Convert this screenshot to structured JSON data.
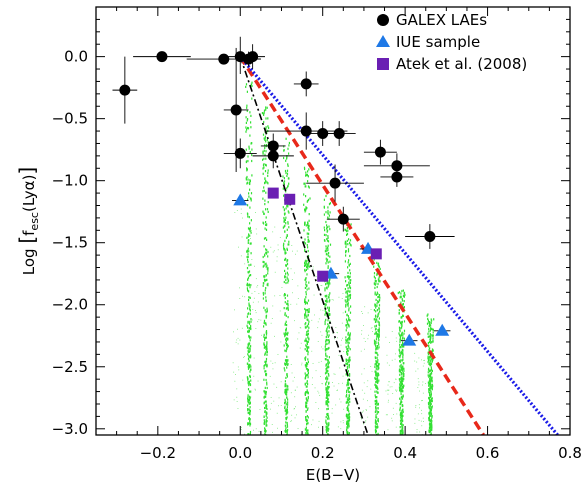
{
  "chart_data": {
    "type": "scatter",
    "xlabel": "E(B−V)",
    "ylabel": "Log [f_esc(Lyα)]",
    "ylabel_main": "Log ",
    "ylabel_f": "f",
    "ylabel_sub": "esc",
    "ylabel_arg": "(Lyα)",
    "xlim": [
      -0.35,
      0.8
    ],
    "ylim": [
      -3.05,
      0.4
    ],
    "x_ticks": [
      -0.2,
      0.0,
      0.2,
      0.4,
      0.6,
      0.8
    ],
    "x_tick_labels": [
      "−0.2",
      "0.0",
      "0.2",
      "0.4",
      "0.6",
      "0.8"
    ],
    "y_ticks": [
      0.0,
      -0.5,
      -1.0,
      -1.5,
      -2.0,
      -2.5,
      -3.0
    ],
    "y_tick_labels": [
      "0.0",
      "−0.5",
      "−1.0",
      "−1.5",
      "−2.0",
      "−2.5",
      "−3.0"
    ],
    "grid": false,
    "legend_position": "top-right",
    "legend": [
      {
        "label": "GALEX LAEs",
        "marker": "circle",
        "color": "#000000"
      },
      {
        "label": "IUE sample",
        "marker": "triangle",
        "color": "#1e78e6"
      },
      {
        "label": "Atek et al. (2008)",
        "marker": "square",
        "color": "#6a1fb3"
      }
    ],
    "series": [
      {
        "name": "GALEX LAEs",
        "marker": "circle",
        "color": "#000000",
        "points": [
          {
            "x": -0.28,
            "y": -0.27,
            "xerr": 0.03,
            "yerr": [
              0.27,
              0.27
            ]
          },
          {
            "x": -0.19,
            "y": 0.0,
            "xerr": 0.07,
            "yerr": [
              0.0,
              0.0
            ]
          },
          {
            "x": -0.04,
            "y": -0.02,
            "xerr": 0.09,
            "yerr": [
              0.0,
              0.0
            ]
          },
          {
            "x": 0.0,
            "y": 0.0,
            "xerr": 0.04,
            "yerr": [
              0.14,
              0.16
            ]
          },
          {
            "x": 0.02,
            "y": -0.02,
            "xerr": 0.03,
            "yerr": [
              0.06,
              0.06
            ]
          },
          {
            "x": 0.03,
            "y": 0.0,
            "xerr": 0.03,
            "yerr": [
              0.1,
              0.1
            ]
          },
          {
            "x": -0.01,
            "y": -0.43,
            "xerr": 0.03,
            "yerr": [
              0.5,
              0.5
            ]
          },
          {
            "x": 0.0,
            "y": -0.78,
            "xerr": 0.04,
            "yerr": [
              0.12,
              0.12
            ]
          },
          {
            "x": 0.08,
            "y": -0.72,
            "xerr": 0.03,
            "yerr": [
              0.1,
              0.1
            ]
          },
          {
            "x": 0.08,
            "y": -0.8,
            "xerr": 0.05,
            "yerr": [
              0.1,
              0.1
            ]
          },
          {
            "x": 0.16,
            "y": -0.22,
            "xerr": 0.03,
            "yerr": [
              0.1,
              0.1
            ]
          },
          {
            "x": 0.16,
            "y": -0.6,
            "xerr": 0.1,
            "yerr": [
              0.15,
              0.15
            ]
          },
          {
            "x": 0.2,
            "y": -0.62,
            "xerr": 0.04,
            "yerr": [
              0.1,
              0.1
            ]
          },
          {
            "x": 0.24,
            "y": -0.62,
            "xerr": 0.04,
            "yerr": [
              0.1,
              0.1
            ]
          },
          {
            "x": 0.23,
            "y": -1.02,
            "xerr": 0.07,
            "yerr": [
              0.15,
              0.15
            ]
          },
          {
            "x": 0.25,
            "y": -1.31,
            "xerr": 0.04,
            "yerr": [
              0.1,
              0.1
            ]
          },
          {
            "x": 0.34,
            "y": -0.77,
            "xerr": 0.04,
            "yerr": [
              0.1,
              0.1
            ]
          },
          {
            "x": 0.38,
            "y": -0.88,
            "xerr": 0.08,
            "yerr": [
              0.1,
              0.1
            ]
          },
          {
            "x": 0.38,
            "y": -0.97,
            "xerr": 0.04,
            "yerr": [
              0.08,
              0.08
            ]
          },
          {
            "x": 0.46,
            "y": -1.45,
            "xerr": 0.06,
            "yerr": [
              0.1,
              0.1
            ]
          }
        ]
      },
      {
        "name": "IUE sample",
        "marker": "triangle",
        "color": "#1e78e6",
        "points": [
          {
            "x": 0.0,
            "y": -1.16,
            "xerr": 0.02
          },
          {
            "x": 0.22,
            "y": -1.75,
            "xerr": 0.02
          },
          {
            "x": 0.31,
            "y": -1.55,
            "xerr": 0.02
          },
          {
            "x": 0.41,
            "y": -2.29,
            "xerr": 0.02
          },
          {
            "x": 0.49,
            "y": -2.21,
            "xerr": 0.02
          }
        ]
      },
      {
        "name": "Atek et al. (2008)",
        "marker": "square",
        "color": "#6a1fb3",
        "points": [
          {
            "x": 0.08,
            "y": -1.1
          },
          {
            "x": 0.12,
            "y": -1.15
          },
          {
            "x": 0.2,
            "y": -1.77
          },
          {
            "x": 0.33,
            "y": -1.59
          }
        ]
      }
    ],
    "model_lines": [
      {
        "style": "dash-dot",
        "color": "#000000",
        "x": [
          0.0,
          0.31
        ],
        "y": [
          0.0,
          -3.05
        ]
      },
      {
        "style": "dashed",
        "color": "#e8281a",
        "x": [
          0.0,
          0.59
        ],
        "y": [
          0.0,
          -3.05
        ]
      },
      {
        "style": "dotted",
        "color": "#1a1ae8",
        "x": [
          0.0,
          0.77
        ],
        "y": [
          0.0,
          -3.05
        ]
      }
    ],
    "green_model_strips": [
      {
        "x": 0.02,
        "y_top": -0.2
      },
      {
        "x": 0.06,
        "y_top": -0.4
      },
      {
        "x": 0.11,
        "y_top": -0.65
      },
      {
        "x": 0.16,
        "y_top": -0.85
      },
      {
        "x": 0.21,
        "y_top": -1.1
      },
      {
        "x": 0.26,
        "y_top": -1.3
      },
      {
        "x": 0.33,
        "y_top": -1.55
      },
      {
        "x": 0.39,
        "y_top": -1.85
      },
      {
        "x": 0.46,
        "y_top": -2.05
      }
    ],
    "green_color": "#33e033"
  }
}
